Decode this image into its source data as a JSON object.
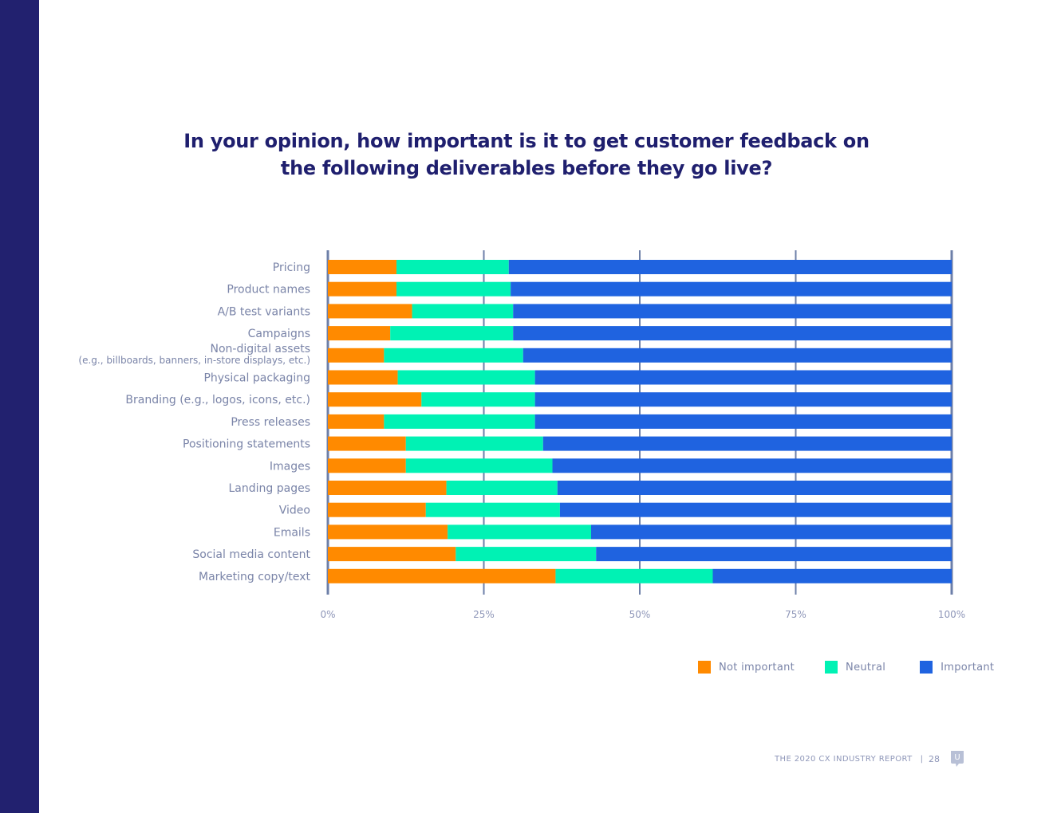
{
  "colors": {
    "side_bar": "#22216f",
    "not_important": "#ff8a00",
    "neutral": "#00f2b4",
    "important": "#1f63e0",
    "axis": "#6d7fa8",
    "title": "#1f1f6e"
  },
  "title": {
    "line1": "In your opinion, how important is it to get customer feedback on",
    "line2": "the following deliverables before they go live?"
  },
  "chart_data": {
    "type": "bar",
    "orientation": "horizontal",
    "stacked": true,
    "title": "In your opinion, how important is it to get customer feedback on the following deliverables before they go live?",
    "xlabel": "",
    "ylabel": "",
    "xlim": [
      0,
      100
    ],
    "ticks": [
      "0%",
      "25%",
      "50%",
      "75%",
      "100%"
    ],
    "tick_values": [
      0,
      25,
      50,
      75,
      100
    ],
    "grid": true,
    "legend_position": "bottom-right",
    "categories": [
      "Pricing",
      "Product names",
      "A/B test variants",
      "Campaigns",
      "Non-digital assets",
      "Physical packaging",
      "Branding (e.g., logos, icons, etc.)",
      "Press releases",
      "Positioning statements",
      "Images",
      "Landing pages",
      "Video",
      "Emails",
      "Social media content",
      "Marketing copy/text"
    ],
    "category_sublabels": [
      "",
      "",
      "",
      "",
      "(e.g., billboards, banners, in-store displays, etc.)",
      "",
      "",
      "",
      "",
      "",
      "",
      "",
      "",
      "",
      ""
    ],
    "series": [
      {
        "name": "Not important",
        "values": [
          11,
          11,
          13.5,
          10,
          9,
          11.2,
          15,
          9,
          12.5,
          12.5,
          19,
          15.7,
          19.2,
          20.5,
          36.5
        ]
      },
      {
        "name": "Neutral",
        "values": [
          18,
          18.3,
          16.2,
          19.7,
          22.3,
          22,
          18.2,
          24.2,
          22,
          23.5,
          17.8,
          21.5,
          23,
          22.5,
          25.2
        ]
      },
      {
        "name": "Important",
        "values": [
          71,
          70.7,
          70.3,
          70.3,
          68.7,
          66.8,
          66.8,
          66.8,
          65.5,
          64,
          63.2,
          62.8,
          57.8,
          57,
          38.3
        ]
      }
    ]
  },
  "legend": {
    "not_important": "Not important",
    "neutral": "Neutral",
    "important": "Important"
  },
  "footer": {
    "report": "THE 2020 CX INDUSTRY REPORT",
    "separator": "|",
    "page": "28",
    "logo_letter": "U"
  }
}
